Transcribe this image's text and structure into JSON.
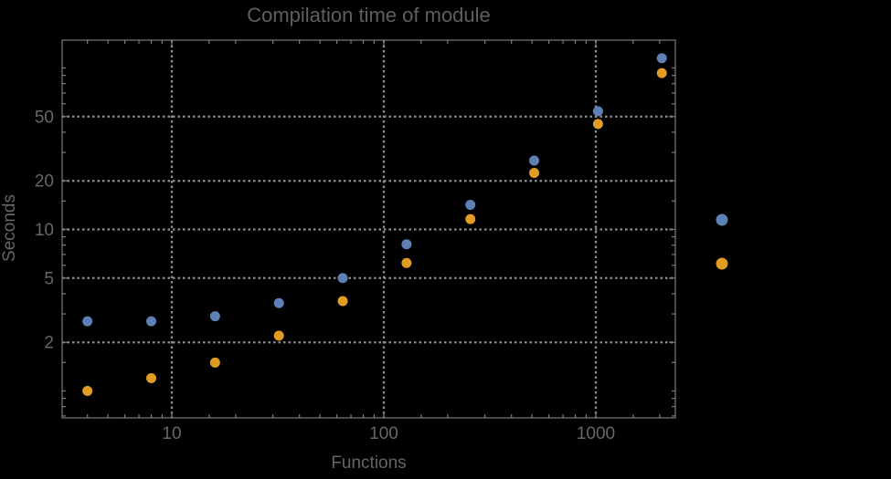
{
  "colors": {
    "background": "#000000",
    "frame": "#6a6a6a",
    "tick": "#7d7d7d",
    "grid": "#8f8f8f",
    "tick_text": "#676767",
    "title_text": "#5f5f5f"
  },
  "chart_data": {
    "type": "scatter",
    "title": "Compilation time of module",
    "xlabel": "Functions",
    "ylabel": "Seconds",
    "x_scale": "log",
    "y_scale": "log",
    "grid": "dotted-at-labeled-ticks",
    "legend_position": "right-outside-no-visible-labels",
    "xlim": [
      3.05,
      2370
    ],
    "ylim": [
      0.68,
      148
    ],
    "x_ticks_labeled": [
      10,
      100,
      1000
    ],
    "y_ticks_labeled": [
      2,
      5,
      10,
      20,
      50
    ],
    "x": [
      4,
      8,
      16,
      32,
      64,
      128,
      256,
      512,
      1024,
      2048
    ],
    "series": [
      {
        "id": "blue",
        "color": "#5E81B5",
        "values": [
          2.7,
          2.7,
          2.9,
          3.5,
          5.0,
          8.1,
          14.2,
          26.7,
          54,
          115
        ]
      },
      {
        "id": "orange",
        "color": "#E19C24",
        "values": [
          1.0,
          1.2,
          1.5,
          2.2,
          3.6,
          6.2,
          11.6,
          22.4,
          45,
          93
        ]
      }
    ]
  }
}
